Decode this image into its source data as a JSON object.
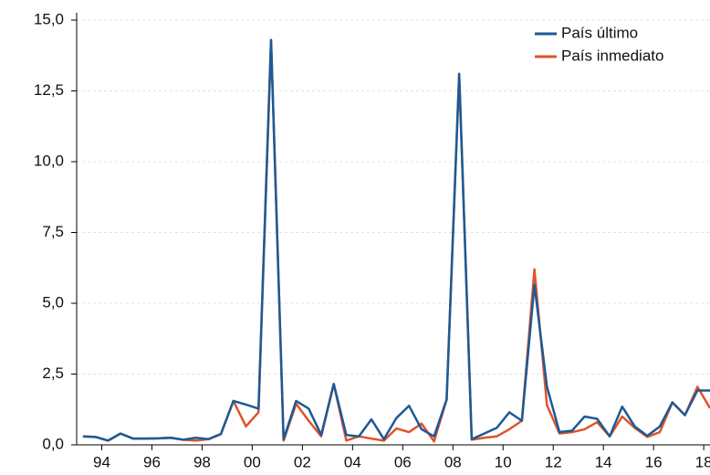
{
  "chart_data": {
    "type": "line",
    "x": [
      1993.25,
      1993.75,
      1994.25,
      1994.75,
      1995.25,
      1995.75,
      1996.25,
      1996.75,
      1997.25,
      1997.75,
      1998.25,
      1998.75,
      1999.25,
      1999.75,
      2000.25,
      2000.75,
      2001.25,
      2001.75,
      2002.25,
      2002.75,
      2003.25,
      2003.75,
      2004.25,
      2004.75,
      2005.25,
      2005.75,
      2006.25,
      2006.75,
      2007.25,
      2007.75,
      2008.25,
      2008.75,
      2009.25,
      2009.75,
      2010.25,
      2010.75,
      2011.25,
      2011.75,
      2012.25,
      2012.75,
      2013.25,
      2013.75,
      2014.25,
      2014.75,
      2015.25,
      2015.75,
      2016.25,
      2016.75,
      2017.25,
      2017.75,
      2018.25
    ],
    "series": [
      {
        "name": "País último",
        "color": "#1b5a96",
        "values": [
          0.3,
          0.28,
          0.15,
          0.4,
          0.22,
          0.22,
          0.23,
          0.25,
          0.18,
          0.25,
          0.2,
          0.38,
          1.55,
          1.42,
          1.28,
          14.3,
          0.2,
          1.55,
          1.28,
          0.35,
          2.15,
          0.35,
          0.3,
          0.9,
          0.2,
          0.95,
          1.38,
          0.55,
          0.3,
          1.6,
          13.1,
          0.2,
          0.4,
          0.6,
          1.15,
          0.85,
          5.65,
          2.05,
          0.45,
          0.5,
          1.0,
          0.92,
          0.3,
          1.35,
          0.65,
          0.32,
          0.65,
          1.5,
          1.05,
          1.92,
          1.92
        ]
      },
      {
        "name": "País inmediato",
        "color": "#e0532b",
        "values": [
          0.3,
          0.28,
          0.15,
          0.4,
          0.22,
          0.22,
          0.23,
          0.25,
          0.18,
          0.15,
          0.2,
          0.38,
          1.55,
          0.65,
          1.15,
          14.3,
          0.15,
          1.45,
          0.85,
          0.3,
          2.15,
          0.15,
          0.3,
          0.22,
          0.15,
          0.58,
          0.45,
          0.75,
          0.12,
          1.6,
          13.1,
          0.18,
          0.25,
          0.3,
          0.55,
          0.85,
          6.2,
          1.4,
          0.4,
          0.45,
          0.55,
          0.8,
          0.3,
          1.0,
          0.6,
          0.28,
          0.45,
          1.5,
          1.05,
          2.05,
          1.3
        ]
      }
    ],
    "xlim": [
      1993,
      2018.25
    ],
    "xticks": [
      {
        "value": 1994,
        "label": "94"
      },
      {
        "value": 1996,
        "label": "96"
      },
      {
        "value": 1998,
        "label": "98"
      },
      {
        "value": 2000,
        "label": "00"
      },
      {
        "value": 2002,
        "label": "02"
      },
      {
        "value": 2004,
        "label": "04"
      },
      {
        "value": 2006,
        "label": "06"
      },
      {
        "value": 2008,
        "label": "08"
      },
      {
        "value": 2010,
        "label": "10"
      },
      {
        "value": 2012,
        "label": "12"
      },
      {
        "value": 2014,
        "label": "14"
      },
      {
        "value": 2016,
        "label": "16"
      },
      {
        "value": 2018,
        "label": "18"
      }
    ],
    "ylim": [
      0,
      15
    ],
    "yticks": [
      {
        "value": 0,
        "label": "0,0"
      },
      {
        "value": 2.5,
        "label": "2,5"
      },
      {
        "value": 5,
        "label": "5,0"
      },
      {
        "value": 7.5,
        "label": "7,5"
      },
      {
        "value": 10,
        "label": "10,0"
      },
      {
        "value": 12.5,
        "label": "12,5"
      },
      {
        "value": 15,
        "label": "15,0"
      }
    ],
    "grid": true,
    "legend": "upper right"
  }
}
